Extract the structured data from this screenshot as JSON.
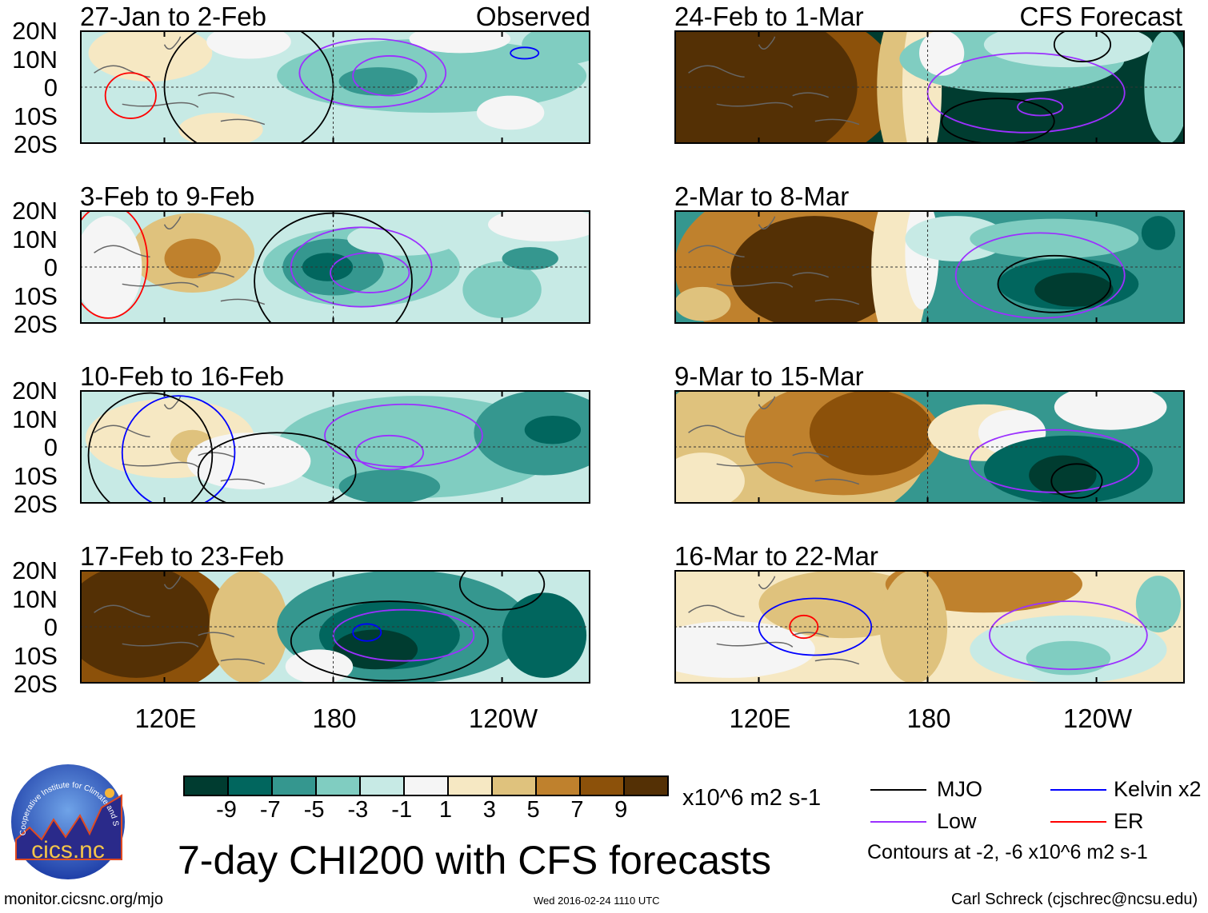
{
  "colors": {
    "scale": [
      "#003c30",
      "#01665e",
      "#35978f",
      "#80cdc1",
      "#c7eae5",
      "#f5f5f5",
      "#f6e8c3",
      "#dfc27d",
      "#bf812d",
      "#8c510a",
      "#543005"
    ],
    "mjo": "#000000",
    "low": "#9b30ff",
    "kelvin": "#0000ff",
    "er": "#ff0000"
  },
  "column_labels": {
    "left": "Observed",
    "right": "CFS Forecast"
  },
  "y_axis": [
    "20N",
    "10N",
    "0",
    "10S",
    "20S"
  ],
  "x_axis": [
    "120E",
    "180",
    "120W"
  ],
  "panels": [
    {
      "title": "27-Jan to 2-Feb",
      "bg": 4,
      "blobs": [
        [
          115,
          12,
          22,
          10,
          6
        ],
        [
          140,
          -15,
          15,
          6,
          6
        ],
        [
          215,
          4,
          55,
          13,
          3
        ],
        [
          196,
          2,
          14,
          5,
          2
        ],
        [
          243,
          -9,
          12,
          6,
          5
        ],
        [
          262,
          15,
          15,
          7,
          3
        ],
        [
          225,
          17,
          18,
          5,
          5
        ],
        [
          150,
          16,
          15,
          6,
          5
        ]
      ],
      "contours": [
        {
          "t": "er",
          "e": [
            108,
            -3,
            9,
            8
          ]
        },
        {
          "t": "low",
          "e": [
            194,
            5,
            26,
            12
          ]
        },
        {
          "t": "low",
          "e": [
            200,
            4,
            13,
            7
          ]
        },
        {
          "t": "kelvin",
          "e": [
            248,
            12,
            5,
            2
          ]
        },
        {
          "t": "mjo",
          "e": [
            150,
            0,
            30,
            25
          ]
        }
      ]
    },
    {
      "title": "3-Feb to 9-Feb",
      "bg": 4,
      "blobs": [
        [
          130,
          5,
          22,
          14,
          7
        ],
        [
          130,
          3,
          10,
          7,
          8
        ],
        [
          100,
          0,
          12,
          18,
          5
        ],
        [
          190,
          0,
          35,
          14,
          3
        ],
        [
          180,
          0,
          18,
          10,
          2
        ],
        [
          178,
          0,
          9,
          5,
          1
        ],
        [
          205,
          10,
          20,
          6,
          4
        ],
        [
          240,
          -8,
          14,
          10,
          3
        ],
        [
          250,
          3,
          10,
          4,
          2
        ],
        [
          255,
          15,
          20,
          6,
          5
        ]
      ],
      "contours": [
        {
          "t": "er",
          "e": [
            100,
            2,
            14,
            20
          ]
        },
        {
          "t": "low",
          "e": [
            190,
            0,
            25,
            14
          ]
        },
        {
          "t": "low",
          "e": [
            193,
            -2,
            14,
            7
          ]
        },
        {
          "t": "mjo",
          "e": [
            180,
            -5,
            28,
            24
          ]
        }
      ]
    },
    {
      "title": "10-Feb to 16-Feb",
      "bg": 4,
      "blobs": [
        [
          122,
          3,
          30,
          14,
          6
        ],
        [
          130,
          0,
          8,
          6,
          7
        ],
        [
          210,
          0,
          50,
          18,
          3
        ],
        [
          255,
          5,
          25,
          15,
          2
        ],
        [
          258,
          6,
          10,
          5,
          1
        ],
        [
          200,
          -14,
          18,
          6,
          2
        ],
        [
          150,
          -5,
          22,
          10,
          5
        ]
      ],
      "contours": [
        {
          "t": "kelvin",
          "e": [
            125,
            -2,
            20,
            20
          ]
        },
        {
          "t": "low",
          "e": [
            205,
            4,
            28,
            11
          ]
        },
        {
          "t": "low",
          "e": [
            200,
            -2,
            12,
            6
          ]
        },
        {
          "t": "mjo",
          "e": [
            160,
            -9,
            28,
            14
          ]
        },
        {
          "t": "mjo",
          "e": [
            115,
            -3,
            22,
            22
          ]
        }
      ]
    },
    {
      "title": "17-Feb to 23-Feb",
      "bg": 4,
      "blobs": [
        [
          110,
          0,
          35,
          25,
          9
        ],
        [
          110,
          2,
          26,
          20,
          10
        ],
        [
          150,
          0,
          14,
          20,
          7
        ],
        [
          205,
          0,
          45,
          20,
          2
        ],
        [
          200,
          -3,
          25,
          12,
          1
        ],
        [
          195,
          -8,
          15,
          7,
          0
        ],
        [
          255,
          -3,
          15,
          15,
          1
        ],
        [
          175,
          -14,
          12,
          6,
          5
        ]
      ],
      "contours": [
        {
          "t": "mjo",
          "e": [
            200,
            -5,
            35,
            14
          ]
        },
        {
          "t": "mjo",
          "e": [
            240,
            15,
            15,
            9
          ]
        },
        {
          "t": "low",
          "e": [
            205,
            -3,
            25,
            9
          ]
        },
        {
          "t": "kelvin",
          "e": [
            192,
            -2,
            5,
            3
          ]
        }
      ]
    },
    {
      "title": "24-Feb to 1-Mar",
      "bg": 0,
      "blobs": [
        [
          120,
          0,
          50,
          30,
          9
        ],
        [
          115,
          0,
          40,
          28,
          10
        ],
        [
          172,
          0,
          10,
          30,
          7
        ],
        [
          178,
          0,
          7,
          30,
          6
        ],
        [
          210,
          10,
          40,
          12,
          3
        ],
        [
          230,
          15,
          30,
          8,
          4
        ],
        [
          265,
          0,
          8,
          20,
          3
        ],
        [
          185,
          12,
          8,
          8,
          5
        ]
      ],
      "contours": [
        {
          "t": "low",
          "e": [
            215,
            -2,
            35,
            14
          ]
        },
        {
          "t": "low",
          "e": [
            220,
            -7,
            8,
            3
          ]
        },
        {
          "t": "mjo",
          "e": [
            205,
            -12,
            20,
            8
          ]
        },
        {
          "t": "mjo",
          "e": [
            235,
            15,
            10,
            6
          ]
        }
      ]
    },
    {
      "title": "2-Mar to 8-Mar",
      "bg": 2,
      "blobs": [
        [
          135,
          0,
          45,
          30,
          8
        ],
        [
          140,
          -2,
          30,
          20,
          10
        ],
        [
          100,
          -13,
          10,
          6,
          7
        ],
        [
          170,
          0,
          10,
          30,
          6
        ],
        [
          178,
          5,
          6,
          20,
          5
        ],
        [
          190,
          10,
          18,
          8,
          4
        ],
        [
          225,
          10,
          30,
          7,
          3
        ],
        [
          230,
          -6,
          25,
          9,
          1
        ],
        [
          232,
          -8,
          14,
          6,
          0
        ],
        [
          262,
          12,
          6,
          6,
          1
        ]
      ],
      "contours": [
        {
          "t": "low",
          "e": [
            220,
            -3,
            30,
            15
          ]
        },
        {
          "t": "mjo",
          "e": [
            225,
            -6,
            20,
            10
          ]
        }
      ]
    },
    {
      "title": "9-Mar to 15-Mar",
      "bg": 2,
      "blobs": [
        [
          130,
          0,
          50,
          30,
          7
        ],
        [
          150,
          3,
          35,
          20,
          8
        ],
        [
          160,
          5,
          22,
          15,
          9
        ],
        [
          100,
          -12,
          15,
          10,
          6
        ],
        [
          200,
          5,
          20,
          10,
          6
        ],
        [
          210,
          5,
          12,
          8,
          5
        ],
        [
          245,
          14,
          20,
          8,
          5
        ],
        [
          230,
          -8,
          30,
          12,
          1
        ],
        [
          228,
          -10,
          12,
          7,
          0
        ]
      ],
      "contours": [
        {
          "t": "low",
          "e": [
            225,
            -5,
            30,
            11
          ]
        },
        {
          "t": "mjo",
          "e": [
            233,
            -12,
            9,
            6
          ]
        }
      ]
    },
    {
      "title": "16-Mar to 22-Mar",
      "bg": 6,
      "blobs": [
        [
          110,
          -8,
          30,
          10,
          5
        ],
        [
          150,
          8,
          30,
          12,
          7
        ],
        [
          200,
          15,
          35,
          10,
          8
        ],
        [
          175,
          0,
          12,
          20,
          7
        ],
        [
          230,
          -8,
          35,
          12,
          4
        ],
        [
          230,
          -11,
          15,
          6,
          3
        ],
        [
          262,
          8,
          8,
          10,
          3
        ]
      ],
      "contours": [
        {
          "t": "kelvin",
          "e": [
            140,
            0,
            20,
            10
          ]
        },
        {
          "t": "er",
          "e": [
            136,
            0,
            5,
            4
          ]
        },
        {
          "t": "low",
          "e": [
            230,
            -3,
            28,
            12
          ]
        }
      ]
    }
  ],
  "colorbar": {
    "ticks": [
      "-9",
      "-7",
      "-5",
      "-3",
      "-1",
      "1",
      "3",
      "5",
      "7",
      "9"
    ],
    "units": "x10^6 m2 s-1"
  },
  "legend": {
    "items": [
      {
        "label": "MJO",
        "type": "mjo"
      },
      {
        "label": "Kelvin x2",
        "type": "kelvin"
      },
      {
        "label": "Low",
        "type": "low"
      },
      {
        "label": "ER",
        "type": "er"
      }
    ],
    "note": "Contours at -2, -6 x10^6 m2 s-1"
  },
  "title": "7-day CHI200 with CFS forecasts",
  "logo": {
    "text": "cics.nc",
    "ring_text": "Cooperative Institute for Climate and Satellites"
  },
  "footer": {
    "url": "monitor.cicsnc.org/mjo",
    "timestamp": "Wed 2016-02-24 1110 UTC",
    "author": "Carl Schreck (cjschrec@ncsu.edu)"
  }
}
